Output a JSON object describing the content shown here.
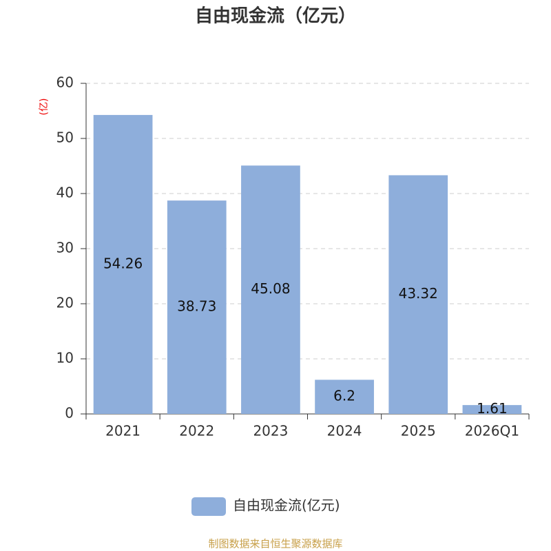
{
  "chart_data": {
    "type": "bar",
    "title": "自由现金流（亿元）",
    "y_label": "(亿)",
    "categories": [
      "2021",
      "2022",
      "2023",
      "2024",
      "2025",
      "2026Q1"
    ],
    "series": [
      {
        "name": "自由现金流(亿元)",
        "color": "#8eaedb",
        "values": [
          54.26,
          38.73,
          45.08,
          6.2,
          43.32,
          1.61
        ]
      }
    ],
    "ylim": [
      0,
      60
    ],
    "yticks": [
      0,
      10,
      20,
      30,
      40,
      50,
      60
    ],
    "grid": true,
    "source": "制图数据来自恒生聚源数据库"
  }
}
